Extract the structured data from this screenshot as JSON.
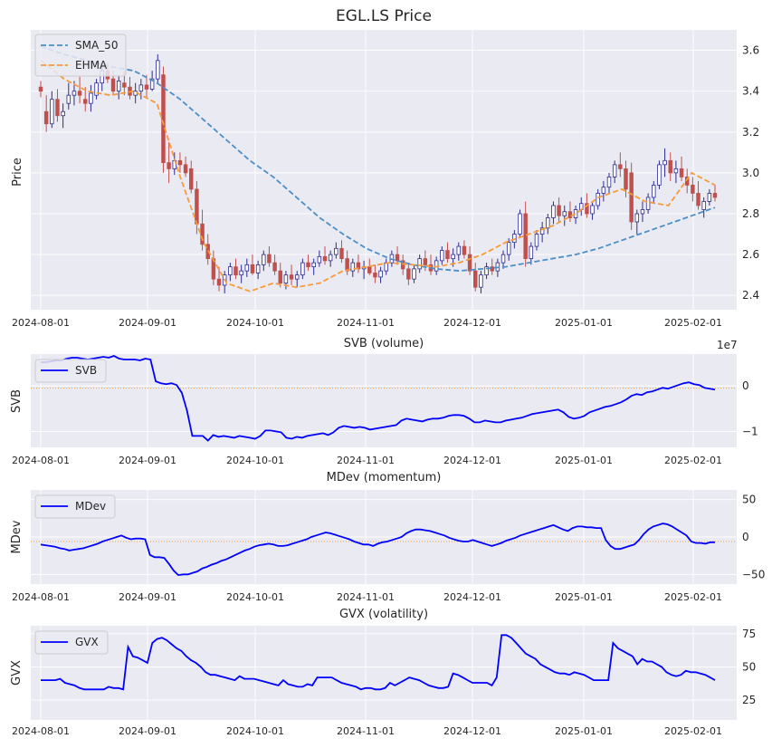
{
  "title": "EGL.LS Price",
  "colors": {
    "up": "#ffffff",
    "up_edge": "#2b2b8f",
    "down": "#c0504d",
    "sma": "#4c8fc8",
    "ehma": "#f59b3c",
    "ind": "#0000ff",
    "zero": "#f59b3c"
  },
  "x_tick_labels": [
    "2024-08-01",
    "2024-09-01",
    "2024-10-01",
    "2024-11-01",
    "2024-12-01",
    "2025-01-01",
    "2025-02-01"
  ],
  "chart_data": [
    {
      "id": "price",
      "type": "candlestick",
      "title": "EGL.LS Price",
      "ylabel": "Price",
      "ylim": [
        2.33,
        3.7
      ],
      "yticks": [
        "2.4",
        "2.6",
        "2.8",
        "3.0",
        "3.2",
        "3.4",
        "3.6"
      ],
      "legend": [
        "SMA_50",
        "EHMA"
      ],
      "ohlc_daily": [
        [
          3.42,
          3.45,
          3.37,
          3.4
        ],
        [
          3.3,
          3.38,
          3.2,
          3.24
        ],
        [
          3.24,
          3.4,
          3.22,
          3.36
        ],
        [
          3.36,
          3.41,
          3.25,
          3.28
        ],
        [
          3.28,
          3.34,
          3.22,
          3.3
        ],
        [
          3.34,
          3.44,
          3.31,
          3.38
        ],
        [
          3.38,
          3.45,
          3.33,
          3.4
        ],
        [
          3.4,
          3.47,
          3.34,
          3.38
        ],
        [
          3.36,
          3.42,
          3.3,
          3.34
        ],
        [
          3.34,
          3.43,
          3.3,
          3.39
        ],
        [
          3.38,
          3.46,
          3.36,
          3.44
        ],
        [
          3.44,
          3.52,
          3.4,
          3.5
        ],
        [
          3.5,
          3.54,
          3.44,
          3.46
        ],
        [
          3.46,
          3.5,
          3.38,
          3.4
        ],
        [
          3.4,
          3.48,
          3.36,
          3.45
        ],
        [
          3.44,
          3.5,
          3.38,
          3.42
        ],
        [
          3.42,
          3.47,
          3.36,
          3.38
        ],
        [
          3.38,
          3.44,
          3.34,
          3.4
        ],
        [
          3.4,
          3.46,
          3.36,
          3.43
        ],
        [
          3.43,
          3.48,
          3.37,
          3.41
        ],
        [
          3.41,
          3.5,
          3.4,
          3.46
        ],
        [
          3.46,
          3.58,
          3.44,
          3.55
        ],
        [
          3.48,
          3.52,
          3.0,
          3.05
        ],
        [
          3.05,
          3.15,
          2.95,
          3.02
        ],
        [
          3.02,
          3.1,
          2.99,
          3.06
        ],
        [
          3.06,
          3.1,
          3.0,
          3.04
        ],
        [
          3.04,
          3.08,
          2.98,
          3.0
        ],
        [
          3.02,
          3.06,
          2.9,
          2.92
        ],
        [
          2.92,
          2.96,
          2.7,
          2.75
        ],
        [
          2.75,
          2.82,
          2.62,
          2.65
        ],
        [
          2.65,
          2.7,
          2.55,
          2.58
        ],
        [
          2.58,
          2.62,
          2.45,
          2.48
        ],
        [
          2.48,
          2.54,
          2.42,
          2.45
        ],
        [
          2.45,
          2.52,
          2.41,
          2.5
        ],
        [
          2.5,
          2.56,
          2.47,
          2.54
        ],
        [
          2.54,
          2.58,
          2.48,
          2.5
        ],
        [
          2.5,
          2.55,
          2.46,
          2.52
        ],
        [
          2.52,
          2.58,
          2.49,
          2.55
        ],
        [
          2.55,
          2.6,
          2.5,
          2.51
        ],
        [
          2.51,
          2.57,
          2.48,
          2.55
        ],
        [
          2.55,
          2.62,
          2.52,
          2.6
        ],
        [
          2.6,
          2.64,
          2.54,
          2.56
        ],
        [
          2.56,
          2.6,
          2.5,
          2.52
        ],
        [
          2.52,
          2.56,
          2.44,
          2.46
        ],
        [
          2.46,
          2.52,
          2.43,
          2.5
        ],
        [
          2.5,
          2.55,
          2.45,
          2.48
        ],
        [
          2.48,
          2.52,
          2.44,
          2.5
        ],
        [
          2.5,
          2.58,
          2.48,
          2.56
        ],
        [
          2.56,
          2.6,
          2.52,
          2.54
        ],
        [
          2.54,
          2.58,
          2.5,
          2.56
        ],
        [
          2.56,
          2.62,
          2.54,
          2.59
        ],
        [
          2.59,
          2.64,
          2.55,
          2.57
        ],
        [
          2.57,
          2.62,
          2.54,
          2.6
        ],
        [
          2.6,
          2.66,
          2.58,
          2.63
        ],
        [
          2.63,
          2.67,
          2.56,
          2.58
        ],
        [
          2.58,
          2.62,
          2.5,
          2.52
        ],
        [
          2.52,
          2.58,
          2.49,
          2.56
        ],
        [
          2.56,
          2.6,
          2.51,
          2.53
        ],
        [
          2.53,
          2.57,
          2.48,
          2.54
        ],
        [
          2.54,
          2.58,
          2.5,
          2.51
        ],
        [
          2.51,
          2.55,
          2.46,
          2.49
        ],
        [
          2.49,
          2.54,
          2.46,
          2.52
        ],
        [
          2.52,
          2.58,
          2.5,
          2.56
        ],
        [
          2.56,
          2.62,
          2.54,
          2.6
        ],
        [
          2.6,
          2.64,
          2.55,
          2.57
        ],
        [
          2.57,
          2.6,
          2.5,
          2.53
        ],
        [
          2.53,
          2.56,
          2.45,
          2.48
        ],
        [
          2.48,
          2.55,
          2.46,
          2.53
        ],
        [
          2.53,
          2.6,
          2.51,
          2.58
        ],
        [
          2.58,
          2.62,
          2.52,
          2.55
        ],
        [
          2.55,
          2.6,
          2.5,
          2.52
        ],
        [
          2.52,
          2.59,
          2.5,
          2.57
        ],
        [
          2.57,
          2.64,
          2.55,
          2.62
        ],
        [
          2.62,
          2.66,
          2.56,
          2.58
        ],
        [
          2.58,
          2.63,
          2.54,
          2.6
        ],
        [
          2.6,
          2.66,
          2.57,
          2.64
        ],
        [
          2.64,
          2.67,
          2.58,
          2.6
        ],
        [
          2.6,
          2.64,
          2.5,
          2.52
        ],
        [
          2.52,
          2.56,
          2.42,
          2.44
        ],
        [
          2.44,
          2.52,
          2.41,
          2.5
        ],
        [
          2.5,
          2.56,
          2.48,
          2.54
        ],
        [
          2.54,
          2.58,
          2.5,
          2.52
        ],
        [
          2.52,
          2.58,
          2.49,
          2.56
        ],
        [
          2.56,
          2.62,
          2.53,
          2.6
        ],
        [
          2.6,
          2.68,
          2.57,
          2.66
        ],
        [
          2.66,
          2.72,
          2.63,
          2.7
        ],
        [
          2.7,
          2.82,
          2.68,
          2.8
        ],
        [
          2.8,
          2.86,
          2.54,
          2.58
        ],
        [
          2.58,
          2.66,
          2.55,
          2.64
        ],
        [
          2.64,
          2.72,
          2.62,
          2.7
        ],
        [
          2.7,
          2.76,
          2.66,
          2.73
        ],
        [
          2.73,
          2.8,
          2.7,
          2.78
        ],
        [
          2.78,
          2.86,
          2.75,
          2.84
        ],
        [
          2.84,
          2.88,
          2.76,
          2.79
        ],
        [
          2.79,
          2.84,
          2.74,
          2.81
        ],
        [
          2.81,
          2.86,
          2.76,
          2.78
        ],
        [
          2.78,
          2.84,
          2.75,
          2.82
        ],
        [
          2.82,
          2.88,
          2.79,
          2.85
        ],
        [
          2.85,
          2.9,
          2.78,
          2.8
        ],
        [
          2.8,
          2.86,
          2.77,
          2.84
        ],
        [
          2.84,
          2.92,
          2.82,
          2.9
        ],
        [
          2.9,
          2.96,
          2.86,
          2.93
        ],
        [
          2.93,
          3.0,
          2.9,
          2.98
        ],
        [
          2.98,
          3.06,
          2.95,
          3.04
        ],
        [
          3.04,
          3.1,
          2.98,
          3.02
        ],
        [
          3.02,
          3.06,
          2.88,
          2.92
        ],
        [
          3.0,
          3.05,
          2.72,
          2.76
        ],
        [
          2.76,
          2.82,
          2.7,
          2.8
        ],
        [
          2.8,
          2.86,
          2.76,
          2.82
        ],
        [
          2.82,
          2.9,
          2.8,
          2.88
        ],
        [
          2.88,
          2.96,
          2.85,
          2.94
        ],
        [
          2.94,
          3.06,
          2.92,
          3.04
        ],
        [
          3.04,
          3.12,
          2.98,
          3.06
        ],
        [
          3.06,
          3.1,
          2.96,
          3.0
        ],
        [
          3.0,
          3.06,
          2.95,
          3.02
        ],
        [
          3.02,
          3.08,
          2.96,
          2.98
        ],
        [
          2.98,
          3.02,
          2.9,
          2.94
        ],
        [
          2.94,
          2.98,
          2.86,
          2.9
        ],
        [
          2.9,
          2.96,
          2.82,
          2.84
        ],
        [
          2.82,
          2.88,
          2.78,
          2.86
        ],
        [
          2.86,
          2.92,
          2.84,
          2.9
        ],
        [
          2.9,
          2.94,
          2.86,
          2.88
        ]
      ],
      "sma_50_sampled": [
        3.62,
        3.58,
        3.55,
        3.52,
        3.5,
        3.44,
        3.36,
        3.26,
        3.16,
        3.06,
        2.98,
        2.88,
        2.78,
        2.7,
        2.63,
        2.58,
        2.55,
        2.53,
        2.52,
        2.53,
        2.54,
        2.56,
        2.58,
        2.6,
        2.63,
        2.67,
        2.71,
        2.75,
        2.79,
        2.83
      ],
      "ehma_sampled": [
        3.55,
        3.46,
        3.4,
        3.38,
        3.4,
        3.34,
        2.98,
        2.66,
        2.46,
        2.42,
        2.46,
        2.44,
        2.46,
        2.52,
        2.54,
        2.56,
        2.55,
        2.54,
        2.56,
        2.6,
        2.66,
        2.7,
        2.74,
        2.8,
        2.88,
        2.92,
        2.86,
        2.84,
        3.0,
        2.94
      ]
    },
    {
      "id": "svb",
      "type": "line",
      "title": "SVB (volume)",
      "ylabel": "SVB",
      "legend": [
        "SVB"
      ],
      "offset_label": "1e7",
      "ylim": [
        -1.35,
        0.7
      ],
      "yticks": [
        "0",
        "−1"
      ],
      "zero_line": -0.05,
      "values": [
        0.52,
        0.52,
        0.54,
        0.56,
        0.56,
        0.6,
        0.62,
        0.62,
        0.6,
        0.58,
        0.6,
        0.62,
        0.64,
        0.62,
        0.66,
        0.6,
        0.58,
        0.58,
        0.58,
        0.56,
        0.6,
        0.58,
        0.1,
        0.06,
        0.04,
        0.06,
        0.02,
        -0.15,
        -0.55,
        -1.1,
        -1.1,
        -1.1,
        -1.2,
        -1.08,
        -1.12,
        -1.1,
        -1.12,
        -1.14,
        -1.1,
        -1.12,
        -1.14,
        -1.16,
        -1.1,
        -0.98,
        -0.98,
        -1.0,
        -1.02,
        -1.14,
        -1.16,
        -1.12,
        -1.14,
        -1.1,
        -1.08,
        -1.06,
        -1.04,
        -1.08,
        -1.02,
        -0.92,
        -0.88,
        -0.9,
        -0.92,
        -0.9,
        -0.92,
        -0.96,
        -0.94,
        -0.92,
        -0.9,
        -0.88,
        -0.86,
        -0.76,
        -0.72,
        -0.74,
        -0.76,
        -0.78,
        -0.74,
        -0.72,
        -0.72,
        -0.7,
        -0.66,
        -0.64,
        -0.64,
        -0.66,
        -0.72,
        -0.8,
        -0.8,
        -0.76,
        -0.78,
        -0.8,
        -0.8,
        -0.76,
        -0.74,
        -0.72,
        -0.7,
        -0.66,
        -0.62,
        -0.6,
        -0.58,
        -0.56,
        -0.54,
        -0.52,
        -0.58,
        -0.68,
        -0.72,
        -0.7,
        -0.66,
        -0.58,
        -0.54,
        -0.5,
        -0.46,
        -0.44,
        -0.4,
        -0.36,
        -0.3,
        -0.22,
        -0.18,
        -0.2,
        -0.14,
        -0.12,
        -0.08,
        -0.04,
        -0.06,
        -0.02,
        0.02,
        0.06,
        0.08,
        0.04,
        0.02,
        -0.04,
        -0.06,
        -0.08
      ]
    },
    {
      "id": "mdev",
      "type": "line",
      "title": "MDev (momentum)",
      "ylabel": "MDev",
      "legend": [
        "MDev"
      ],
      "ylim": [
        -63,
        63
      ],
      "yticks": [
        "−50",
        "0",
        "50"
      ],
      "zero_line": -6,
      "values": [
        -10,
        -11,
        -12,
        -13,
        -15,
        -16,
        -18,
        -17,
        -16,
        -15,
        -13,
        -11,
        -9,
        -6,
        -4,
        -2,
        0,
        2,
        -1,
        -3,
        -2,
        -2,
        -3,
        -24,
        -27,
        -27,
        -28,
        -36,
        -45,
        -51,
        -50,
        -50,
        -48,
        -46,
        -42,
        -40,
        -37,
        -35,
        -32,
        -30,
        -27,
        -24,
        -21,
        -18,
        -16,
        -13,
        -11,
        -10,
        -9,
        -10,
        -12,
        -12,
        -11,
        -9,
        -7,
        -5,
        -3,
        0,
        2,
        4,
        6,
        5,
        3,
        1,
        -1,
        -3,
        -6,
        -8,
        -10,
        -10,
        -12,
        -9,
        -7,
        -6,
        -4,
        -2,
        0,
        5,
        8,
        10,
        10,
        9,
        8,
        6,
        4,
        2,
        -1,
        -3,
        -5,
        -6,
        -6,
        -4,
        -6,
        -8,
        -10,
        -12,
        -10,
        -8,
        -5,
        -3,
        -1,
        2,
        4,
        6,
        8,
        10,
        12,
        14,
        16,
        13,
        10,
        8,
        12,
        14,
        14,
        13,
        13,
        12,
        12,
        -4,
        -12,
        -16,
        -16,
        -14,
        -12,
        -10,
        -4,
        4,
        10,
        14,
        16,
        18,
        17,
        14,
        10,
        6,
        2,
        -6,
        -8,
        -8,
        -9,
        -7,
        -7
      ]
    },
    {
      "id": "gvx",
      "type": "line",
      "title": "GVX (volatility)",
      "ylabel": "GVX",
      "legend": [
        "GVX"
      ],
      "ylim": [
        10,
        81
      ],
      "yticks": [
        "25",
        "50",
        "75"
      ],
      "values": [
        40,
        40,
        40,
        40,
        41,
        38,
        37,
        36,
        34,
        33,
        33,
        33,
        33,
        33,
        35,
        34,
        34,
        33,
        65,
        58,
        57,
        55,
        53,
        68,
        71,
        72,
        70,
        67,
        64,
        62,
        58,
        55,
        53,
        50,
        46,
        44,
        44,
        43,
        42,
        41,
        40,
        43,
        41,
        41,
        41,
        40,
        39,
        38,
        37,
        36,
        40,
        37,
        36,
        35,
        35,
        37,
        36,
        42,
        42,
        42,
        42,
        40,
        38,
        37,
        36,
        35,
        33,
        34,
        34,
        33,
        33,
        34,
        38,
        36,
        38,
        40,
        42,
        41,
        40,
        38,
        36,
        35,
        34,
        34,
        35,
        45,
        44,
        42,
        40,
        38,
        38,
        38,
        38,
        36,
        42,
        74,
        74,
        72,
        68,
        64,
        60,
        58,
        56,
        52,
        50,
        48,
        46,
        45,
        45,
        44,
        46,
        45,
        44,
        42,
        40,
        40,
        40,
        40,
        68,
        64,
        62,
        60,
        58,
        52,
        56,
        54,
        54,
        52,
        50,
        46,
        44,
        43,
        44,
        47,
        46,
        46,
        45,
        44,
        42,
        40
      ]
    }
  ]
}
